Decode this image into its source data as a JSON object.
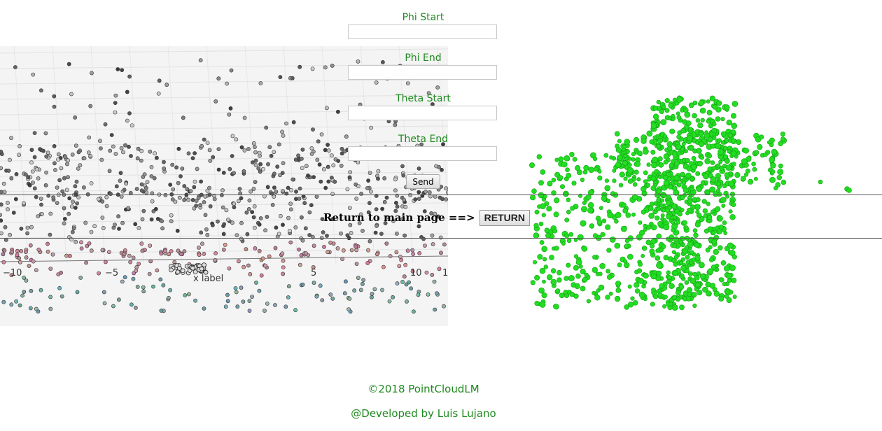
{
  "form": {
    "phi_start": {
      "label": "Phi Start",
      "value": ""
    },
    "phi_end": {
      "label": "Phi End",
      "value": ""
    },
    "theta_start": {
      "label": "Theta Start",
      "value": ""
    },
    "theta_end": {
      "label": "Theta End",
      "value": ""
    },
    "send_label": "Send"
  },
  "return_row": {
    "text": "Return to main page ==>",
    "button_label": "RETURN"
  },
  "plot": {
    "x_axis_label": "x label",
    "x_ticks": [
      "−10",
      "−5",
      "5",
      "10",
      "1"
    ]
  },
  "colors": {
    "accent_green": "#1f8a1f",
    "cloud_green": "#22dd22"
  },
  "footer": {
    "copyright": "©2018 PointCloudLM",
    "developer": "@Developed by Luis Lujano"
  }
}
